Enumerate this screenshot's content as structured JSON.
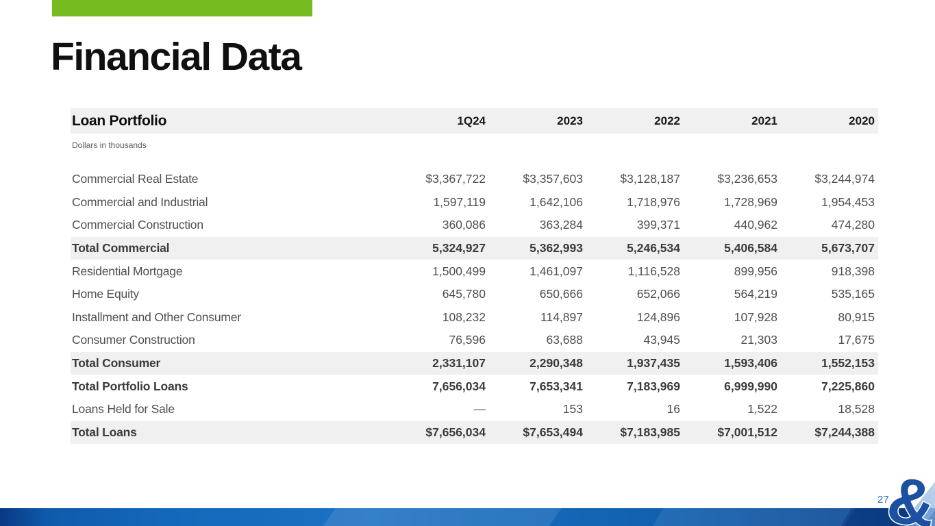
{
  "slide": {
    "title": "Financial Data",
    "page_number": "27"
  },
  "colors": {
    "accent_green": "#76bc21",
    "band_gray": "#f0f0f1",
    "page_number_blue": "#2e6db4",
    "logo_blue": "#1c51a2"
  },
  "table": {
    "title": "Loan Portfolio",
    "subtitle": "Dollars in thousands",
    "columns": [
      "1Q24",
      "2023",
      "2022",
      "2021",
      "2020"
    ],
    "rows": [
      {
        "label": "Commercial Real Estate",
        "style": "normal",
        "values": [
          "$3,367,722",
          "$3,357,603",
          "$3,128,187",
          "$3,236,653",
          "$3,244,974"
        ]
      },
      {
        "label": "Commercial and Industrial",
        "style": "normal",
        "values": [
          "1,597,119",
          "1,642,106",
          "1,718,976",
          "1,728,969",
          "1,954,453"
        ]
      },
      {
        "label": "Commercial Construction",
        "style": "normal",
        "values": [
          "360,086",
          "363,284",
          "399,371",
          "440,962",
          "474,280"
        ]
      },
      {
        "label": "Total Commercial",
        "style": "total",
        "values": [
          "5,324,927",
          "5,362,993",
          "5,246,534",
          "5,406,584",
          "5,673,707"
        ]
      },
      {
        "label": "Residential Mortgage",
        "style": "normal",
        "values": [
          "1,500,499",
          "1,461,097",
          "1,116,528",
          "899,956",
          "918,398"
        ]
      },
      {
        "label": "Home Equity",
        "style": "normal",
        "values": [
          "645,780",
          "650,666",
          "652,066",
          "564,219",
          "535,165"
        ]
      },
      {
        "label": "Installment and Other Consumer",
        "style": "normal",
        "values": [
          "108,232",
          "114,897",
          "124,896",
          "107,928",
          "80,915"
        ]
      },
      {
        "label": "Consumer Construction",
        "style": "normal",
        "values": [
          "76,596",
          "63,688",
          "43,945",
          "21,303",
          "17,675"
        ]
      },
      {
        "label": "Total Consumer",
        "style": "total",
        "values": [
          "2,331,107",
          "2,290,348",
          "1,937,435",
          "1,593,406",
          "1,552,153"
        ]
      },
      {
        "label": "Total Portfolio Loans",
        "style": "bold",
        "values": [
          "7,656,034",
          "7,653,341",
          "7,183,969",
          "6,999,990",
          "7,225,860"
        ]
      },
      {
        "label": "Loans Held for Sale",
        "style": "normal",
        "values": [
          "—",
          "153",
          "16",
          "1,522",
          "18,528"
        ]
      },
      {
        "label": "Total Loans",
        "style": "total",
        "values": [
          "$7,656,034",
          "$7,653,494",
          "$7,183,985",
          "$7,001,512",
          "$7,244,388"
        ]
      }
    ]
  },
  "footer": {
    "logo_glyph": "&"
  }
}
